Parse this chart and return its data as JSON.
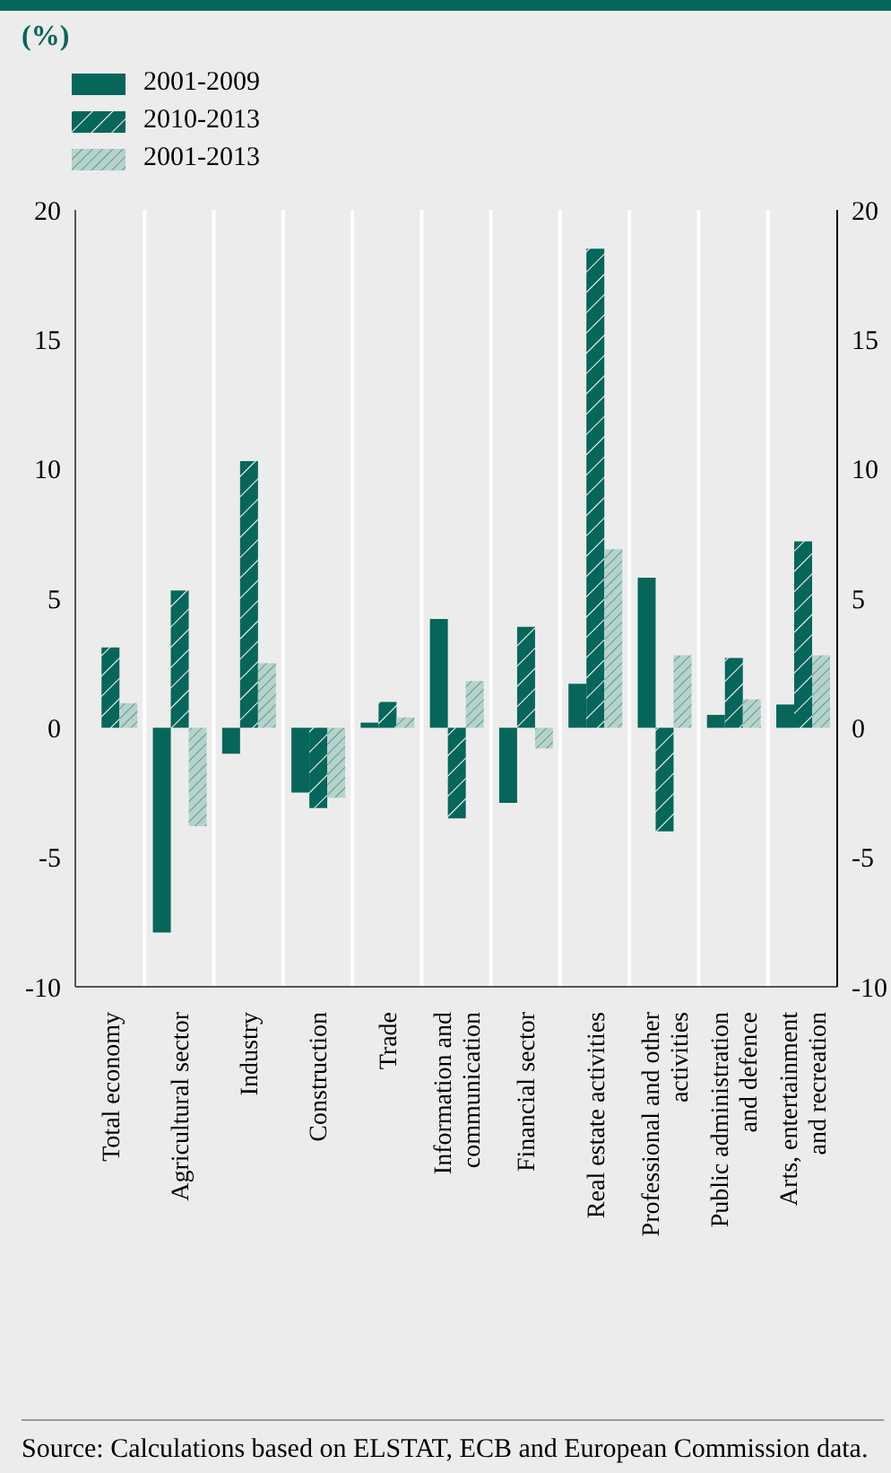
{
  "chart_data": {
    "type": "bar",
    "title": "(%)",
    "categories": [
      "Total economy",
      "Agricultural sector",
      "Industry",
      "Construction",
      "Trade",
      "Information and communication",
      "Financial sector",
      "Real estate activities",
      "Professional and other activities",
      "Public administration and defence",
      "Arts, entertainment and recreation"
    ],
    "series": [
      {
        "name": "2001-2009",
        "color": "#06665a",
        "values": [
          0,
          -7.9,
          -1.0,
          -2.5,
          0.2,
          4.2,
          -2.9,
          1.7,
          5.8,
          0.5,
          0.9
        ]
      },
      {
        "name": "2010-2013",
        "color": "#06665a",
        "values": [
          3.1,
          5.3,
          10.3,
          -3.1,
          1.0,
          -3.5,
          3.9,
          18.5,
          -4.0,
          2.7,
          7.2
        ]
      },
      {
        "name": "2001-2013",
        "color": "#b5d3cc",
        "values": [
          0.95,
          -3.8,
          2.5,
          -2.7,
          0.4,
          1.8,
          -0.8,
          6.9,
          2.8,
          1.1,
          2.8
        ]
      }
    ],
    "ylim": [
      -10,
      20
    ],
    "yticks": [
      -10,
      -5,
      0,
      5,
      10,
      15,
      20
    ],
    "y2lim": [
      -10,
      20
    ],
    "y2ticks": [
      -10,
      -5,
      0,
      5,
      10,
      15,
      20
    ],
    "grid": true,
    "legend": "top left",
    "annotations": [
      "Source: Calculations based on ELSTAT, ECB and European Commission data."
    ]
  }
}
